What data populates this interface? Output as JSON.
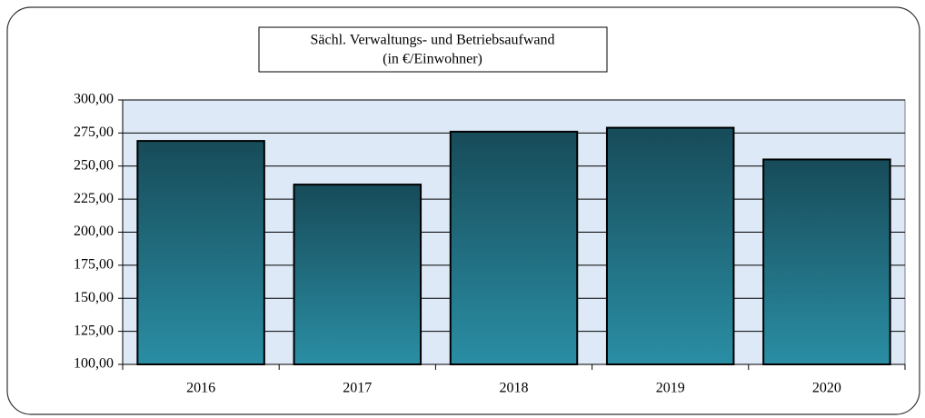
{
  "chart_data": {
    "type": "bar",
    "title": "Sächl. Verwaltungs- und Betriebsaufwand",
    "subtitle": "(in €/Einwohner)",
    "categories": [
      "2016",
      "2017",
      "2018",
      "2019",
      "2020"
    ],
    "values": [
      269,
      236,
      276,
      279,
      255
    ],
    "color": "#2a8ea4",
    "ylim": [
      100,
      300
    ],
    "yticks": [
      {
        "value": 100,
        "label": "100,00"
      },
      {
        "value": 125,
        "label": "125,00"
      },
      {
        "value": 150,
        "label": "150,00"
      },
      {
        "value": 175,
        "label": "175,00"
      },
      {
        "value": 200,
        "label": "200,00"
      },
      {
        "value": 225,
        "label": "225,00"
      },
      {
        "value": 250,
        "label": "250,00"
      },
      {
        "value": 275,
        "label": "275,00"
      },
      {
        "value": 300,
        "label": "300,00"
      }
    ],
    "grid": true
  }
}
